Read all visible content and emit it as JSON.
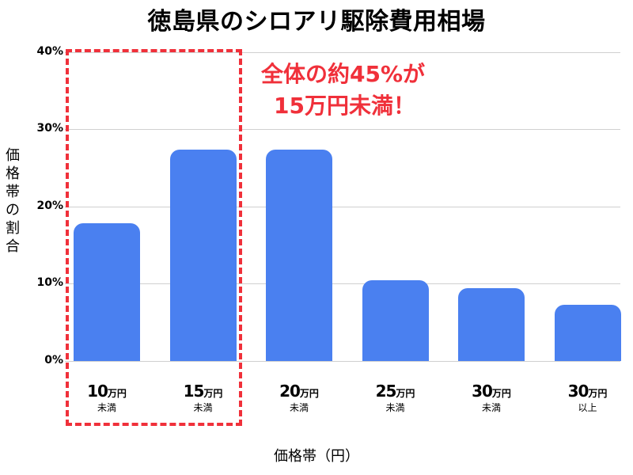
{
  "title": "徳島県のシロアリ駆除費用相場",
  "callout": {
    "line1": "全体の約45%が",
    "line2": "15万円未満！",
    "color": "#f0303a"
  },
  "yaxis": {
    "label": "価格帯の割合",
    "ticks": [
      "40%",
      "30%",
      "20%",
      "10%",
      "0%"
    ]
  },
  "xaxis": {
    "label": "価格帯（円）"
  },
  "bars": [
    {
      "num": "10",
      "unit": "万円",
      "sub": "未満",
      "value": 17.8
    },
    {
      "num": "15",
      "unit": "万円",
      "sub": "未満",
      "value": 27.4
    },
    {
      "num": "20",
      "unit": "万円",
      "sub": "未満",
      "value": 27.4
    },
    {
      "num": "25",
      "unit": "万円",
      "sub": "未満",
      "value": 10.5
    },
    {
      "num": "30",
      "unit": "万円",
      "sub": "未満",
      "value": 9.4
    },
    {
      "num": "30",
      "unit": "万円",
      "sub": "以上",
      "value": 7.3
    }
  ],
  "chart_data": {
    "type": "bar",
    "title": "徳島県のシロアリ駆除費用相場",
    "categories": [
      "10万円未満",
      "15万円未満",
      "20万円未満",
      "25万円未満",
      "30万円未満",
      "30万円以上"
    ],
    "values": [
      17.8,
      27.4,
      27.4,
      10.5,
      9.4,
      7.3
    ],
    "xlabel": "価格帯（円）",
    "ylabel": "価格帯の割合",
    "ylim": [
      0,
      40
    ],
    "yticks": [
      "0%",
      "10%",
      "20%",
      "30%",
      "40%"
    ],
    "grid": true,
    "bar_color": "#4a80f0",
    "annotations": [
      "全体の約45%が 15万円未満！",
      "dashed red box highlighting 10万円未満 and 15万円未満"
    ]
  }
}
